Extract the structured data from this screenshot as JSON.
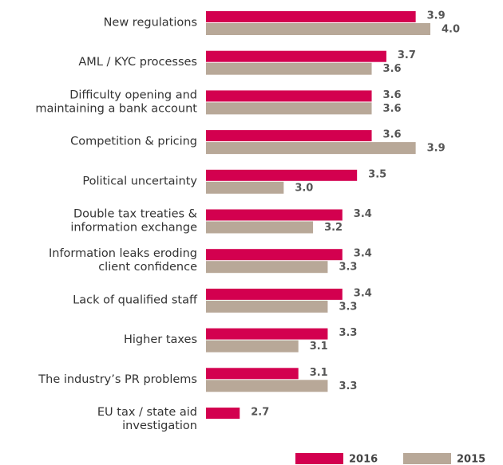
{
  "chart_data": {
    "type": "bar",
    "orientation": "horizontal",
    "categories": [
      [
        "New regulations"
      ],
      [
        "AML / KYC processes"
      ],
      [
        "Difficulty opening and",
        "maintaining a bank account"
      ],
      [
        "Competition & pricing"
      ],
      [
        "Political uncertainty"
      ],
      [
        "Double tax treaties &",
        "information exchange"
      ],
      [
        "Information leaks eroding",
        "client confidence"
      ],
      [
        "Lack of qualified staff"
      ],
      [
        "Higher taxes"
      ],
      [
        "The industry’s PR problems"
      ],
      [
        "EU tax / state aid",
        "investigation"
      ]
    ],
    "series": [
      {
        "name": "2016",
        "color": "#d3004f",
        "values": [
          3.9,
          3.7,
          3.6,
          3.6,
          3.5,
          3.4,
          3.4,
          3.4,
          3.3,
          3.1,
          2.7
        ],
        "value_labels": [
          "3.9",
          "3.7",
          "3.6",
          "3.6",
          "3.5",
          "3.4",
          "3.4",
          "3.4",
          "3.3",
          "3.1",
          "2.7"
        ]
      },
      {
        "name": "2015",
        "color": "#b8a898",
        "values": [
          4.0,
          3.6,
          3.6,
          3.9,
          3.0,
          3.2,
          3.3,
          3.3,
          3.1,
          3.3,
          null
        ],
        "value_labels": [
          "4.0",
          "3.6",
          "3.6",
          "3.9",
          "3.0",
          "3.2",
          "3.3",
          "3.3",
          "3.1",
          "3.3",
          null
        ]
      }
    ],
    "xlim": [
      2.47,
      4.0
    ],
    "legend": "bottom-right"
  }
}
